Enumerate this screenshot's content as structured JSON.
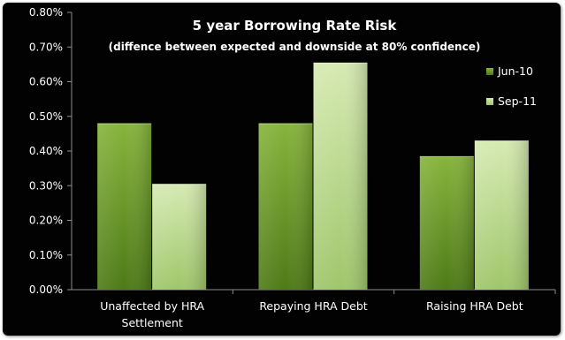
{
  "chart_data": {
    "type": "bar",
    "title": "5 year Borrowing Rate Risk",
    "subtitle": "(diffence between expected and downside at 80% confidence)",
    "xlabel": "",
    "ylabel": "",
    "categories": [
      [
        "Unaffected by HRA",
        "Settlement"
      ],
      [
        "Repaying HRA Debt"
      ],
      [
        "Raising HRA Debt"
      ]
    ],
    "series": [
      {
        "name": "Jun-10",
        "values": [
          0.48,
          0.48,
          0.385
        ],
        "color_top": "#86b43c",
        "color_bottom": "#4e7a17"
      },
      {
        "name": "Sep-11",
        "values": [
          0.305,
          0.655,
          0.43
        ],
        "color_top": "#d6eab2",
        "color_bottom": "#9fc66a"
      }
    ],
    "ylim": [
      0,
      0.8
    ],
    "yticks": [
      0.0,
      0.1,
      0.2,
      0.3,
      0.4,
      0.5,
      0.6,
      0.7,
      0.8
    ],
    "ytick_labels": [
      "0.00%",
      "0.10%",
      "0.20%",
      "0.30%",
      "0.40%",
      "0.50%",
      "0.60%",
      "0.70%",
      "0.80%"
    ],
    "grid": false,
    "legend_position": "top-right",
    "background": "#020202",
    "axis_color": "#8c8c8c"
  }
}
